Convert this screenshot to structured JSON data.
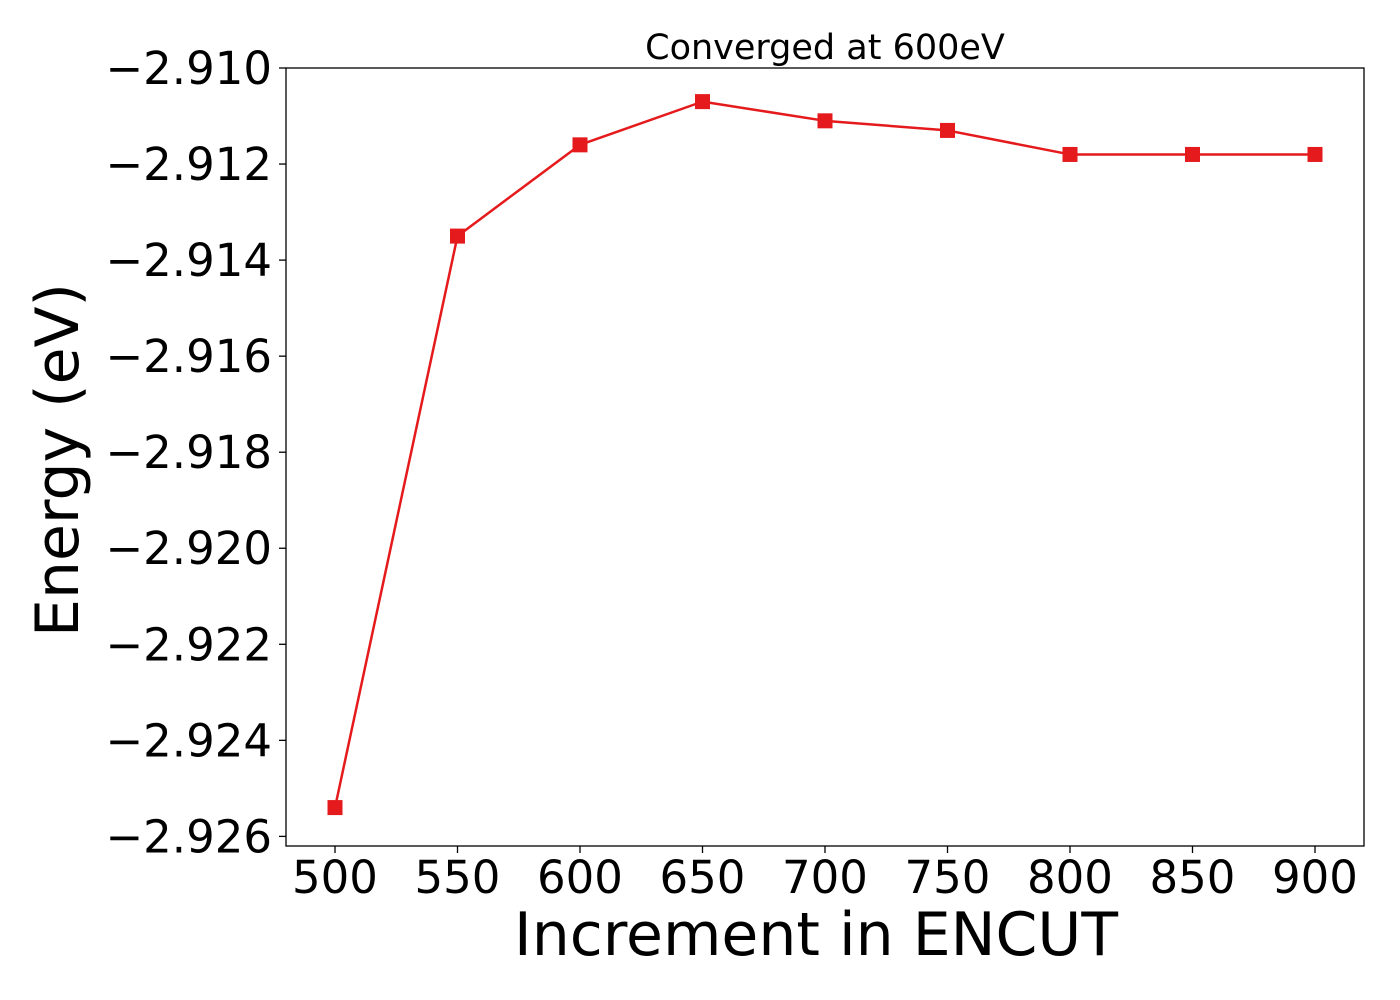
{
  "chart_data": {
    "type": "line",
    "title": "Converged at 600eV",
    "xlabel": "Increment in ENCUT",
    "ylabel": "Energy (eV)",
    "x": [
      500,
      550,
      600,
      650,
      700,
      750,
      800,
      850,
      900
    ],
    "series": [
      {
        "values": [
          -2.9254,
          -2.9135,
          -2.9116,
          -2.9107,
          -2.9111,
          -2.9113,
          -2.9118,
          -2.9118,
          -2.9118
        ],
        "color": "#e41a1c",
        "marker": "square"
      }
    ],
    "xlim": [
      480,
      920
    ],
    "ylim": [
      -2.9262,
      -2.91
    ],
    "xticks": [
      500,
      550,
      600,
      650,
      700,
      750,
      800,
      850,
      900
    ],
    "xtick_labels": [
      "500",
      "550",
      "600",
      "650",
      "700",
      "750",
      "800",
      "850",
      "900"
    ],
    "yticks": [
      -2.91,
      -2.912,
      -2.914,
      -2.916,
      -2.918,
      -2.92,
      -2.922,
      -2.924,
      -2.926
    ],
    "ytick_labels": [
      "−2.910",
      "−2.912",
      "−2.914",
      "−2.916",
      "−2.918",
      "−2.920",
      "−2.922",
      "−2.924",
      "−2.926"
    ],
    "grid": false,
    "legend": false
  }
}
